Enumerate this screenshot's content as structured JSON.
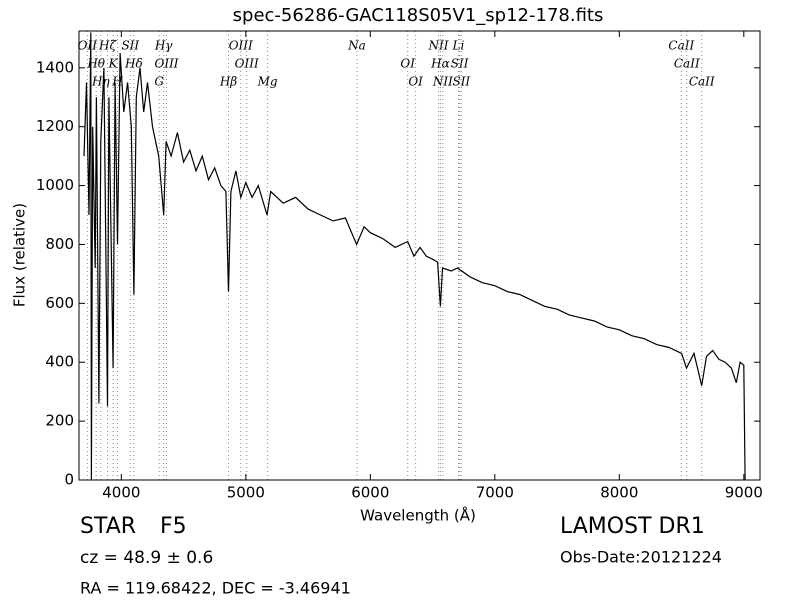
{
  "chart_data": {
    "type": "line",
    "title": "spec-56286-GAC118S05V1_sp12-178.fits",
    "x_label": "Wavelength (Å)",
    "y_label": "Flux (relative)",
    "xlim": [
      3660,
      9130
    ],
    "ylim": [
      0,
      1525
    ],
    "xticks": [
      4000,
      5000,
      6000,
      7000,
      8000,
      9000
    ],
    "yticks": [
      0,
      200,
      400,
      600,
      800,
      1000,
      1200,
      1400
    ],
    "color": "#000000",
    "line_color": "#44bb44",
    "x": [
      3700,
      3720,
      3740,
      3755,
      3760,
      3770,
      3790,
      3800,
      3820,
      3835,
      3860,
      3889,
      3900,
      3934,
      3950,
      3969,
      3990,
      4020,
      4050,
      4080,
      4101,
      4120,
      4150,
      4180,
      4210,
      4250,
      4300,
      4340,
      4360,
      4400,
      4450,
      4500,
      4550,
      4600,
      4650,
      4700,
      4750,
      4800,
      4840,
      4861,
      4880,
      4920,
      4960,
      5000,
      5050,
      5100,
      5170,
      5200,
      5300,
      5400,
      5500,
      5600,
      5700,
      5800,
      5890,
      5950,
      6000,
      6100,
      6200,
      6300,
      6350,
      6400,
      6450,
      6500,
      6540,
      6563,
      6580,
      6650,
      6700,
      6800,
      6900,
      7000,
      7100,
      7200,
      7300,
      7400,
      7500,
      7600,
      7700,
      7800,
      7900,
      8000,
      8100,
      8200,
      8300,
      8400,
      8500,
      8540,
      8600,
      8662,
      8700,
      8750,
      8800,
      8850,
      8900,
      8940,
      8970,
      9000,
      9010
    ],
    "values": [
      1100,
      1350,
      900,
      1520,
      0,
      1200,
      720,
      1300,
      260,
      1150,
      1400,
      250,
      1300,
      380,
      1350,
      800,
      1450,
      1250,
      1350,
      1200,
      630,
      1300,
      1400,
      1250,
      1350,
      1200,
      1100,
      900,
      1150,
      1100,
      1180,
      1080,
      1120,
      1050,
      1100,
      1020,
      1060,
      1000,
      980,
      640,
      980,
      1050,
      960,
      1010,
      960,
      1000,
      900,
      980,
      940,
      960,
      920,
      900,
      880,
      890,
      800,
      860,
      840,
      820,
      790,
      810,
      760,
      790,
      760,
      750,
      740,
      590,
      720,
      710,
      720,
      690,
      670,
      660,
      640,
      630,
      610,
      590,
      580,
      560,
      550,
      540,
      520,
      510,
      490,
      480,
      460,
      450,
      430,
      380,
      430,
      320,
      420,
      440,
      410,
      400,
      380,
      330,
      400,
      390,
      0
    ],
    "lines": [
      {
        "wavelength": 3727,
        "label": "OII"
      },
      {
        "wavelength": 3798,
        "label": "Hθ"
      },
      {
        "wavelength": 3835,
        "label": "Hη"
      },
      {
        "wavelength": 3889,
        "label": "Hζ"
      },
      {
        "wavelength": 3934,
        "label": "K"
      },
      {
        "wavelength": 3969,
        "label": "H"
      },
      {
        "wavelength": 4072,
        "label": "SII"
      },
      {
        "wavelength": 4101,
        "label": "Hδ"
      },
      {
        "wavelength": 4304,
        "label": "G"
      },
      {
        "wavelength": 4340,
        "label": "Hγ"
      },
      {
        "wavelength": 4363,
        "label": "OIII"
      },
      {
        "wavelength": 4861,
        "label": "Hβ"
      },
      {
        "wavelength": 4959,
        "label": "OIII"
      },
      {
        "wavelength": 5007,
        "label": "OIII"
      },
      {
        "wavelength": 5175,
        "label": "Mg"
      },
      {
        "wavelength": 5893,
        "label": "Na"
      },
      {
        "wavelength": 6300,
        "label": "OI"
      },
      {
        "wavelength": 6364,
        "label": "OI"
      },
      {
        "wavelength": 6548,
        "label": "NII"
      },
      {
        "wavelength": 6563,
        "label": "Hα"
      },
      {
        "wavelength": 6583,
        "label": "NII"
      },
      {
        "wavelength": 6708,
        "label": "Li"
      },
      {
        "wavelength": 6717,
        "label": "SII"
      },
      {
        "wavelength": 6731,
        "label": "SII"
      },
      {
        "wavelength": 8498,
        "label": "CaII"
      },
      {
        "wavelength": 8542,
        "label": "CaII"
      },
      {
        "wavelength": 8662,
        "label": "CaII"
      }
    ]
  },
  "info": {
    "object_class": "STAR",
    "subclass": "F5",
    "survey": "LAMOST DR1",
    "redshift": "cz = 48.9  ± 0.6",
    "obs_date": "Obs-Date:20121224",
    "position": "RA = 119.68422, DEC = -3.46941"
  }
}
